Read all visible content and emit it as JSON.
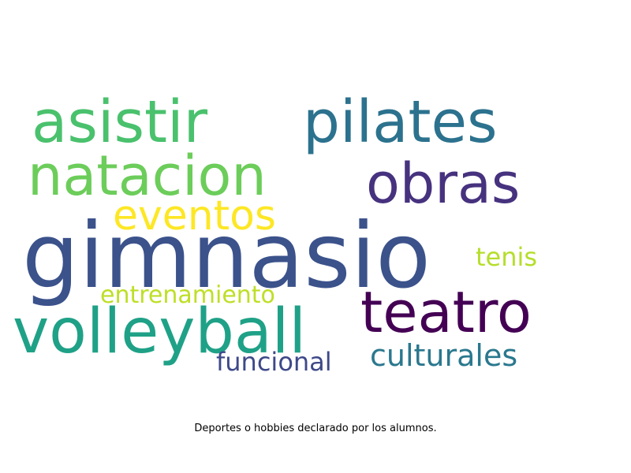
{
  "words": [
    {
      "text": "gimnasio",
      "color": "#3b528b"
    },
    {
      "text": "volleyball",
      "color": "#1fa187"
    },
    {
      "text": "asistir",
      "color": "#4ac16d"
    },
    {
      "text": "pilates",
      "color": "#2c728e"
    },
    {
      "text": "natacion",
      "color": "#6ccd5a"
    },
    {
      "text": "obras",
      "color": "#46327e"
    },
    {
      "text": "eventos",
      "color": "#fde725"
    },
    {
      "text": "teatro",
      "color": "#440154"
    },
    {
      "text": "tenis",
      "color": "#b5de2b"
    },
    {
      "text": "entrenamiento",
      "color": "#bddf26"
    },
    {
      "text": "culturales",
      "color": "#2a788e"
    },
    {
      "text": "funcional",
      "color": "#3e4989"
    }
  ],
  "caption": "Deportes o hobbies declarado por los alumnos."
}
